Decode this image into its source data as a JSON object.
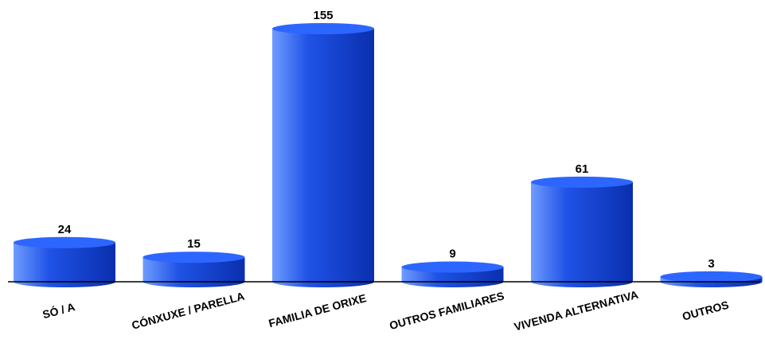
{
  "chart_data": {
    "type": "bar",
    "categories": [
      "SÓ / A",
      "CÓNXUXE / PARELLA",
      "FAMILIA DE ORIXE",
      "OUTROS FAMILIARES",
      "VIVENDA ALTERNATIVA",
      "OUTROS"
    ],
    "values": [
      24,
      15,
      155,
      9,
      61,
      3
    ],
    "title": "",
    "xlabel": "",
    "ylabel": "",
    "ylim": [
      0,
      155
    ],
    "grid": false,
    "legend": "none",
    "bar_style": "3d-cylinder",
    "colors": {
      "bar_light": "#6f9cff",
      "bar_main": "#1f52e6",
      "bar_dark": "#0a2fae",
      "bar_top": "#2d66ff",
      "axis": "#000000"
    }
  }
}
